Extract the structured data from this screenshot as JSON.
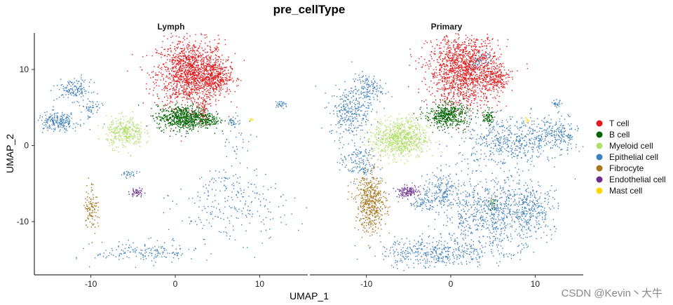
{
  "watermark": "CSDN @Kevin丶大牛",
  "chart_data": {
    "type": "scatter",
    "title": "pre_cellType",
    "xlabel": "UMAP_1",
    "ylabel": "UMAP_2",
    "xlim": [
      -16.7,
      15.7
    ],
    "ylim": [
      -17,
      14.8
    ],
    "x_ticks": [
      -10,
      0,
      10
    ],
    "y_ticks": [
      -10,
      0,
      10
    ],
    "facets": [
      "Lymph",
      "Primary"
    ],
    "legend_position": "right",
    "grid": false,
    "series": [
      {
        "name": "T cell",
        "color": "#E41A1C"
      },
      {
        "name": "B cell",
        "color": "#006400"
      },
      {
        "name": "Myeloid cell",
        "color": "#B2DF6A"
      },
      {
        "name": "Epithelial cell",
        "color": "#3F81BE"
      },
      {
        "name": "Fibrocyte",
        "color": "#A6761D"
      },
      {
        "name": "Endothelial cell",
        "color": "#6A2D8F"
      },
      {
        "name": "Mast cell",
        "color": "#FFD700"
      }
    ],
    "clusters": {
      "Lymph": [
        {
          "series": "T cell",
          "cx": 1.8,
          "cy": 9.5,
          "sx": 2.0,
          "sy": 2.2,
          "n": 1400
        },
        {
          "series": "T cell",
          "cx": 4.6,
          "cy": 9.0,
          "sx": 1.0,
          "sy": 1.0,
          "n": 300
        },
        {
          "series": "T cell",
          "cx": 3.2,
          "cy": 4.6,
          "sx": 0.3,
          "sy": 1.0,
          "n": 50
        },
        {
          "series": "B cell",
          "cx": 1.0,
          "cy": 3.7,
          "sx": 1.6,
          "sy": 0.8,
          "n": 700
        },
        {
          "series": "B cell",
          "cx": 4.3,
          "cy": 3.4,
          "sx": 0.6,
          "sy": 0.4,
          "n": 60
        },
        {
          "series": "Myeloid cell",
          "cx": -6.0,
          "cy": 1.8,
          "sx": 1.1,
          "sy": 1.0,
          "n": 340
        },
        {
          "series": "Epithelial cell",
          "cx": -14.0,
          "cy": 3.2,
          "sx": 1.2,
          "sy": 0.6,
          "n": 220
        },
        {
          "series": "Epithelial cell",
          "cx": -12.0,
          "cy": 7.4,
          "sx": 1.0,
          "sy": 0.7,
          "n": 140
        },
        {
          "series": "Epithelial cell",
          "cx": -10.0,
          "cy": 5.0,
          "sx": 0.6,
          "sy": 0.7,
          "n": 50
        },
        {
          "series": "Epithelial cell",
          "cx": -3.5,
          "cy": -14.0,
          "sx": 3.0,
          "sy": 0.7,
          "n": 170
        },
        {
          "series": "Epithelial cell",
          "cx": 6.5,
          "cy": -9.0,
          "sx": 3.5,
          "sy": 1.8,
          "n": 170
        },
        {
          "series": "Epithelial cell",
          "cx": 7.0,
          "cy": -5.0,
          "sx": 2.5,
          "sy": 1.0,
          "n": 80
        },
        {
          "series": "Epithelial cell",
          "cx": 7.2,
          "cy": 0.5,
          "sx": 1.0,
          "sy": 2.0,
          "n": 40
        },
        {
          "series": "Epithelial cell",
          "cx": 12.5,
          "cy": 5.5,
          "sx": 0.4,
          "sy": 0.25,
          "n": 30
        },
        {
          "series": "Epithelial cell",
          "cx": -5.5,
          "cy": -3.7,
          "sx": 0.5,
          "sy": 0.2,
          "n": 30
        },
        {
          "series": "Epithelial cell",
          "cx": 6.8,
          "cy": 3.2,
          "sx": 0.3,
          "sy": 0.3,
          "n": 25
        },
        {
          "series": "Fibrocyte",
          "cx": -10.0,
          "cy": -8.0,
          "sx": 0.4,
          "sy": 1.6,
          "n": 110
        },
        {
          "series": "Endothelial cell",
          "cx": -4.6,
          "cy": -6.1,
          "sx": 0.4,
          "sy": 0.3,
          "n": 45
        },
        {
          "series": "Mast cell",
          "cx": 9.0,
          "cy": 3.4,
          "sx": 0.15,
          "sy": 0.15,
          "n": 8
        }
      ],
      "Primary": [
        {
          "series": "T cell",
          "cx": 1.5,
          "cy": 10.0,
          "sx": 2.1,
          "sy": 2.3,
          "n": 1500
        },
        {
          "series": "T cell",
          "cx": 5.2,
          "cy": 8.8,
          "sx": 0.8,
          "sy": 0.9,
          "n": 200
        },
        {
          "series": "B cell",
          "cx": -0.5,
          "cy": 4.0,
          "sx": 1.3,
          "sy": 0.8,
          "n": 450
        },
        {
          "series": "B cell",
          "cx": 4.4,
          "cy": 3.8,
          "sx": 0.3,
          "sy": 0.5,
          "n": 70
        },
        {
          "series": "B cell",
          "cx": 4.8,
          "cy": -7.5,
          "sx": 0.3,
          "sy": 0.4,
          "n": 25
        },
        {
          "series": "Myeloid cell",
          "cx": -6.0,
          "cy": 1.0,
          "sx": 1.6,
          "sy": 1.3,
          "n": 800
        },
        {
          "series": "Epithelial cell",
          "cx": -12.0,
          "cy": 4.5,
          "sx": 1.2,
          "sy": 1.6,
          "n": 280
        },
        {
          "series": "Epithelial cell",
          "cx": -10.0,
          "cy": 7.5,
          "sx": 0.9,
          "sy": 1.0,
          "n": 150
        },
        {
          "series": "Epithelial cell",
          "cx": -11.0,
          "cy": -2.0,
          "sx": 1.1,
          "sy": 1.3,
          "n": 150
        },
        {
          "series": "Epithelial cell",
          "cx": -2.0,
          "cy": -14.0,
          "sx": 3.2,
          "sy": 1.0,
          "n": 400
        },
        {
          "series": "Epithelial cell",
          "cx": 7.0,
          "cy": 0.5,
          "sx": 3.0,
          "sy": 1.6,
          "n": 500
        },
        {
          "series": "Epithelial cell",
          "cx": 12.5,
          "cy": 1.5,
          "sx": 1.3,
          "sy": 1.1,
          "n": 200
        },
        {
          "series": "Epithelial cell",
          "cx": 5.0,
          "cy": -9.0,
          "sx": 3.0,
          "sy": 2.3,
          "n": 750
        },
        {
          "series": "Epithelial cell",
          "cx": 9.5,
          "cy": -8.0,
          "sx": 1.5,
          "sy": 1.6,
          "n": 200
        },
        {
          "series": "Epithelial cell",
          "cx": -1.0,
          "cy": -6.0,
          "sx": 1.2,
          "sy": 1.3,
          "n": 200
        },
        {
          "series": "Epithelial cell",
          "cx": -3.5,
          "cy": -7.5,
          "sx": 0.8,
          "sy": 0.4,
          "n": 60
        },
        {
          "series": "Epithelial cell",
          "cx": 12.5,
          "cy": 5.5,
          "sx": 0.3,
          "sy": 0.25,
          "n": 25
        },
        {
          "series": "Epithelial cell",
          "cx": 3.5,
          "cy": 11.2,
          "sx": 0.6,
          "sy": 0.5,
          "n": 40
        },
        {
          "series": "Fibrocyte",
          "cx": -9.5,
          "cy": -7.5,
          "sx": 0.9,
          "sy": 1.9,
          "n": 500
        },
        {
          "series": "Endothelial cell",
          "cx": -5.2,
          "cy": -6.0,
          "sx": 0.7,
          "sy": 0.35,
          "n": 120
        },
        {
          "series": "Mast cell",
          "cx": 9.0,
          "cy": 3.4,
          "sx": 0.15,
          "sy": 0.15,
          "n": 10
        }
      ]
    }
  }
}
